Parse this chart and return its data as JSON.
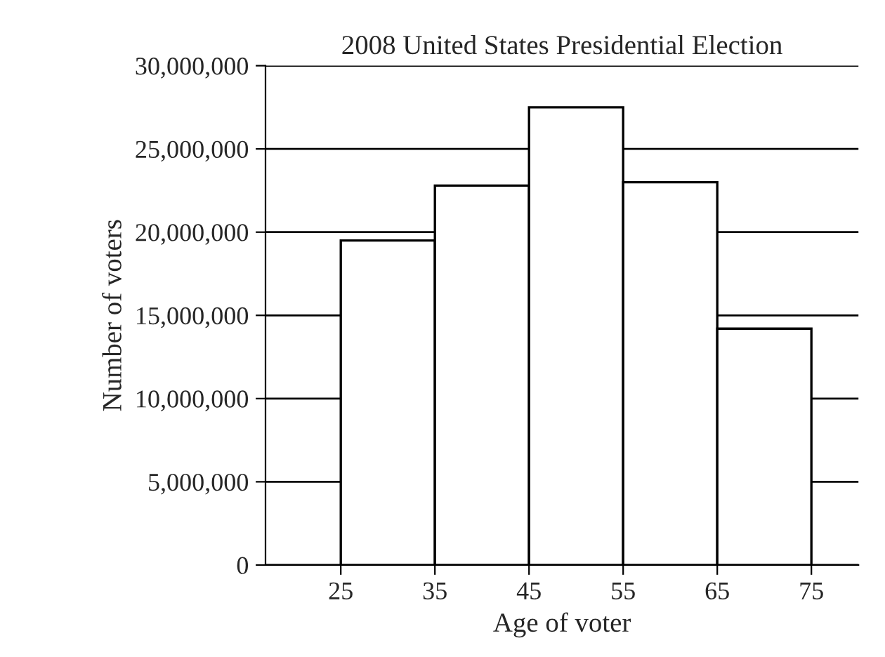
{
  "chart_data": {
    "type": "histogram",
    "title": "2008 United States Presidential Election",
    "xlabel": "Age of voter",
    "ylabel": "Number of voters",
    "bins": [
      25,
      35,
      45,
      55,
      65,
      75
    ],
    "values": [
      19500000,
      22800000,
      27500000,
      23000000,
      14200000
    ],
    "color": "#ffffff",
    "xlim": [
      17,
      80
    ],
    "xticks": [
      25,
      35,
      45,
      55,
      65,
      75
    ],
    "ylim": [
      0,
      30000000
    ],
    "yticks": [
      {
        "value": 0,
        "label": "0"
      },
      {
        "value": 5000000,
        "label": "5,000,000"
      },
      {
        "value": 10000000,
        "label": "10,000,000"
      },
      {
        "value": 15000000,
        "label": "15,000,000"
      },
      {
        "value": 20000000,
        "label": "20,000,000"
      },
      {
        "value": 25000000,
        "label": "25,000,000"
      },
      {
        "value": 30000000,
        "label": "30,000,000"
      }
    ],
    "grid": "y"
  }
}
